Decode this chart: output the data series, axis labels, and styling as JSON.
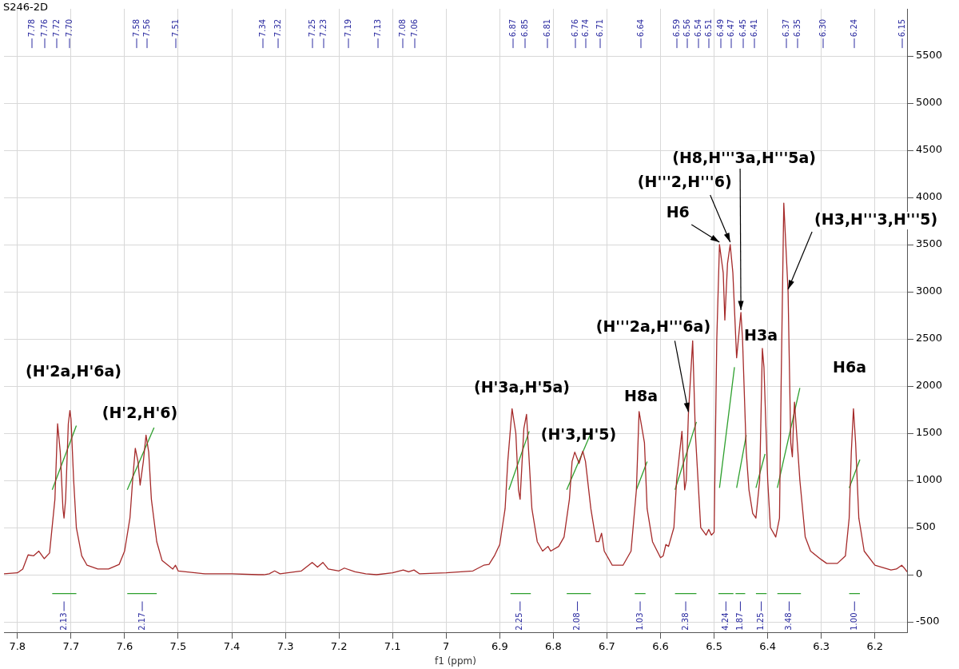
{
  "chart_data": {
    "type": "line",
    "xlabel": "f1 (ppm)",
    "xlim": [
      7.825,
      6.14
    ],
    "ylim": [
      -610,
      6000
    ],
    "xticks": [
      7.8,
      7.7,
      7.6,
      7.5,
      7.4,
      7.3,
      7.2,
      7.1,
      7.0,
      6.9,
      6.8,
      6.7,
      6.6,
      6.5,
      6.4,
      6.3,
      6.2
    ],
    "yticks": [
      -500,
      0,
      500,
      1000,
      1500,
      2000,
      2500,
      3000,
      3500,
      4000,
      4500,
      5000,
      5500
    ],
    "grid": true,
    "legend": false,
    "marker": "none",
    "line_style": "solid",
    "x": [
      7.825,
      7.8,
      7.79,
      7.78,
      7.77,
      7.76,
      7.75,
      7.74,
      7.73,
      7.725,
      7.72,
      7.715,
      7.713,
      7.71,
      7.705,
      7.702,
      7.7,
      7.695,
      7.69,
      7.68,
      7.67,
      7.65,
      7.63,
      7.61,
      7.6,
      7.59,
      7.585,
      7.58,
      7.575,
      7.571,
      7.565,
      7.56,
      7.555,
      7.55,
      7.54,
      7.53,
      7.51,
      7.505,
      7.5,
      7.45,
      7.4,
      7.35,
      7.34,
      7.33,
      7.32,
      7.31,
      7.27,
      7.25,
      7.24,
      7.23,
      7.22,
      7.2,
      7.19,
      7.17,
      7.15,
      7.13,
      7.1,
      7.08,
      7.07,
      7.06,
      7.05,
      7.0,
      6.95,
      6.93,
      6.92,
      6.91,
      6.9,
      6.89,
      6.885,
      6.877,
      6.87,
      6.865,
      6.862,
      6.855,
      6.85,
      6.847,
      6.84,
      6.83,
      6.82,
      6.81,
      6.805,
      6.79,
      6.78,
      6.77,
      6.765,
      6.76,
      6.752,
      6.745,
      6.74,
      6.73,
      6.72,
      6.715,
      6.71,
      6.705,
      6.69,
      6.67,
      6.655,
      6.645,
      6.64,
      6.63,
      6.625,
      6.615,
      6.6,
      6.595,
      6.59,
      6.585,
      6.575,
      6.57,
      6.56,
      6.555,
      6.552,
      6.548,
      6.54,
      6.535,
      6.53,
      6.525,
      6.515,
      6.51,
      6.505,
      6.5,
      6.495,
      6.49,
      6.483,
      6.48,
      6.475,
      6.47,
      6.465,
      6.458,
      6.45,
      6.447,
      6.44,
      6.435,
      6.428,
      6.422,
      6.415,
      6.41,
      6.407,
      6.4,
      6.395,
      6.385,
      6.378,
      6.375,
      6.37,
      6.362,
      6.357,
      6.354,
      6.352,
      6.35,
      6.34,
      6.33,
      6.32,
      6.3,
      6.29,
      6.27,
      6.255,
      6.248,
      6.244,
      6.24,
      6.236,
      6.23,
      6.22,
      6.2,
      6.17,
      6.16,
      6.15,
      6.145,
      6.14
    ],
    "series": [
      {
        "color": "#a52a2a",
        "values": [
          10,
          20,
          60,
          210,
          200,
          250,
          170,
          230,
          800,
          1600,
          1300,
          700,
          600,
          800,
          1600,
          1740,
          1650,
          1000,
          500,
          200,
          100,
          60,
          60,
          110,
          250,
          600,
          1000,
          1340,
          1200,
          950,
          1200,
          1480,
          1300,
          800,
          350,
          150,
          60,
          100,
          40,
          10,
          10,
          0,
          0,
          10,
          40,
          10,
          40,
          130,
          80,
          130,
          60,
          40,
          70,
          30,
          10,
          0,
          20,
          50,
          30,
          50,
          10,
          20,
          40,
          100,
          110,
          200,
          320,
          700,
          1200,
          1760,
          1500,
          900,
          800,
          1550,
          1700,
          1400,
          700,
          350,
          250,
          300,
          250,
          300,
          400,
          800,
          1200,
          1300,
          1180,
          1310,
          1200,
          700,
          350,
          350,
          440,
          250,
          100,
          100,
          250,
          900,
          1730,
          1400,
          700,
          350,
          180,
          200,
          320,
          300,
          500,
          1000,
          1520,
          900,
          1000,
          1700,
          2480,
          1500,
          1000,
          500,
          420,
          480,
          420,
          450,
          2500,
          3500,
          3200,
          2700,
          3300,
          3500,
          3200,
          2300,
          2780,
          2500,
          1300,
          900,
          650,
          600,
          1000,
          2400,
          2200,
          1000,
          500,
          400,
          600,
          2000,
          3940,
          3000,
          1400,
          1250,
          1600,
          1830,
          1000,
          400,
          250,
          160,
          120,
          120,
          200,
          600,
          1300,
          1760,
          1400,
          600,
          250,
          100,
          50,
          60,
          100,
          70,
          30
        ]
      },
      {
        "color": "#2ea02e",
        "x": [
          7.735,
          7.69
        ],
        "values": [
          900,
          1580
        ]
      },
      {
        "color": "#2ea02e",
        "x": [
          7.595,
          7.545
        ],
        "values": [
          900,
          1560
        ]
      },
      {
        "color": "#2ea02e",
        "x": [
          6.883,
          6.845
        ],
        "values": [
          900,
          1520
        ]
      },
      {
        "color": "#2ea02e",
        "x": [
          6.775,
          6.73
        ],
        "values": [
          900,
          1500
        ]
      },
      {
        "color": "#2ea02e",
        "x": [
          6.645,
          6.625
        ],
        "values": [
          900,
          1200
        ]
      },
      {
        "color": "#2ea02e",
        "x": [
          6.573,
          6.533
        ],
        "values": [
          900,
          1620
        ]
      },
      {
        "color": "#2ea02e",
        "x": [
          6.49,
          6.462
        ],
        "values": [
          920,
          2200
        ]
      },
      {
        "color": "#2ea02e",
        "x": [
          6.458,
          6.44
        ],
        "values": [
          920,
          1480
        ]
      },
      {
        "color": "#2ea02e",
        "x": [
          6.422,
          6.405
        ],
        "values": [
          920,
          1280
        ]
      },
      {
        "color": "#2ea02e",
        "x": [
          6.382,
          6.34
        ],
        "values": [
          920,
          1980
        ]
      },
      {
        "color": "#2ea02e",
        "x": [
          6.248,
          6.228
        ],
        "values": [
          920,
          1220
        ]
      },
      {
        "color": "#2ea02e",
        "x": [
          7.735,
          7.69
        ],
        "values": [
          -200,
          -200
        ]
      },
      {
        "color": "#2ea02e",
        "x": [
          7.595,
          7.54
        ],
        "values": [
          -200,
          -200
        ]
      },
      {
        "color": "#2ea02e",
        "x": [
          6.88,
          6.842
        ],
        "values": [
          -200,
          -200
        ]
      },
      {
        "color": "#2ea02e",
        "x": [
          6.775,
          6.73
        ],
        "values": [
          -200,
          -200
        ]
      },
      {
        "color": "#2ea02e",
        "x": [
          6.648,
          6.628
        ],
        "values": [
          -200,
          -200
        ]
      },
      {
        "color": "#2ea02e",
        "x": [
          6.573,
          6.533
        ],
        "values": [
          -200,
          -200
        ]
      },
      {
        "color": "#2ea02e",
        "x": [
          6.492,
          6.464
        ],
        "values": [
          -200,
          -200
        ]
      },
      {
        "color": "#2ea02e",
        "x": [
          6.46,
          6.442
        ],
        "values": [
          -200,
          -200
        ]
      },
      {
        "color": "#2ea02e",
        "x": [
          6.422,
          6.402
        ],
        "values": [
          -200,
          -200
        ]
      },
      {
        "color": "#2ea02e",
        "x": [
          6.382,
          6.338
        ],
        "values": [
          -200,
          -200
        ]
      },
      {
        "color": "#2ea02e",
        "x": [
          6.248,
          6.228
        ],
        "values": [
          -200,
          -200
        ]
      }
    ],
    "annotations": [
      "S246-2D",
      "(H'2a,H'6a)",
      "(H'2,H'6)",
      "(H'3a,H'5a)",
      "(H'3,H'5)",
      "H8a",
      {
        "text": "(H'''2a,H'''6a)",
        "x": 6.548,
        "y": 1700
      },
      {
        "text": "H6",
        "x": 6.49,
        "y": 3500
      },
      {
        "text": "(H'''2,H'''6)",
        "x": 6.47,
        "y": 3500
      },
      {
        "text": "(H8,H'''3a,H'''5a)",
        "x": 6.45,
        "y": 2780
      },
      "H3a",
      {
        "text": "(H3,H'''3,H'''5)",
        "x": 6.362,
        "y": 3000
      },
      "H6a",
      "7.78",
      "7.76",
      "7.72",
      "7.70",
      "7.58",
      "7.56",
      "7.51",
      "7.34",
      "7.32",
      "7.25",
      "7.23",
      "7.19",
      "7.13",
      "7.08",
      "7.06",
      "6.87",
      "6.85",
      "6.81",
      "6.76",
      "6.74",
      "6.71",
      "6.64",
      "6.59",
      "6.56",
      "6.54",
      "6.51",
      "6.49",
      "6.47",
      "6.45",
      "6.41",
      "6.37",
      "6.35",
      "6.30",
      "6.24",
      "6.15",
      {
        "text": "2.13",
        "x": 7.713,
        "y": -200
      },
      {
        "text": "2.17",
        "x": 7.567,
        "y": -200
      },
      {
        "text": "2.25",
        "x": 6.862,
        "y": -200
      },
      {
        "text": "2.08",
        "x": 6.755,
        "y": -200
      },
      {
        "text": "1.03",
        "x": 6.638,
        "y": -200
      },
      {
        "text": "2.38",
        "x": 6.553,
        "y": -200
      },
      {
        "text": "4.24",
        "x": 6.478,
        "y": -200
      },
      {
        "text": "1.87",
        "x": 6.451,
        "y": -200
      },
      {
        "text": "1.25",
        "x": 6.412,
        "y": -200
      },
      {
        "text": "3.48",
        "x": 6.36,
        "y": -200
      },
      {
        "text": "1.00",
        "x": 6.238,
        "y": -200
      }
    ]
  }
}
